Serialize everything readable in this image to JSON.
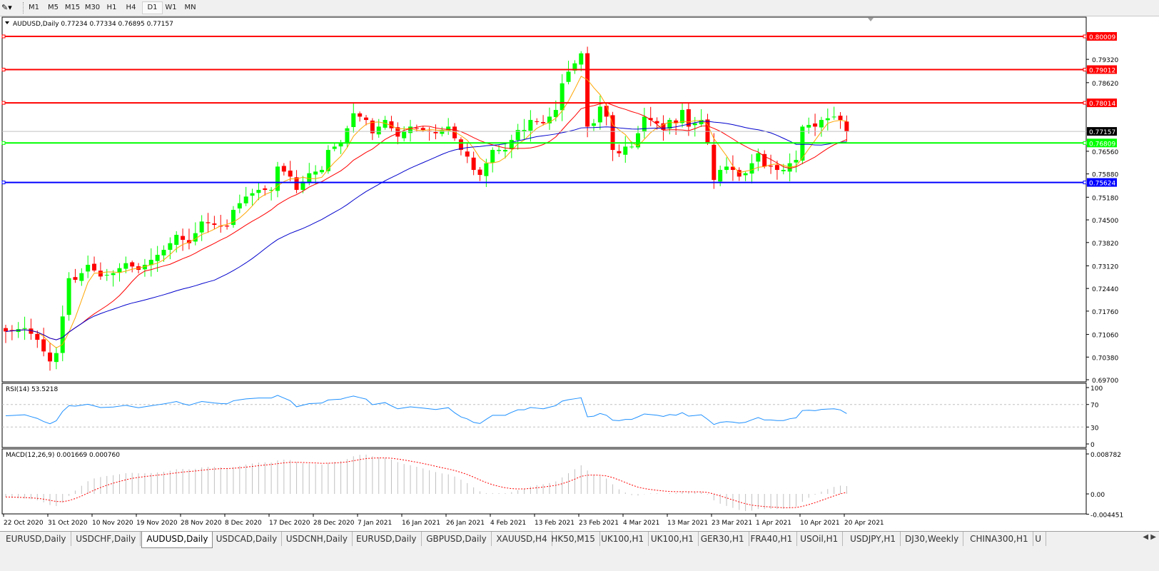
{
  "toolbar": {
    "tool_icon": "cursor-crosshair-icon",
    "timeframes": [
      "M1",
      "M5",
      "M15",
      "M30",
      "H1",
      "H4",
      "D1",
      "W1",
      "MN"
    ],
    "active_timeframe": "D1"
  },
  "chart": {
    "header": "AUDUSD,Daily  0.77234 0.77334 0.76895 0.77157",
    "symbol": "AUDUSD",
    "period": "Daily",
    "ohlc": {
      "open": 0.77234,
      "high": 0.77334,
      "low": 0.76895,
      "close": 0.77157
    },
    "current_price": "0.77157",
    "price_ticks": [
      "0.79320",
      "0.78620",
      "0.76560",
      "0.75880",
      "0.75180",
      "0.74500",
      "0.73820",
      "0.73120",
      "0.72440",
      "0.71760",
      "0.71060",
      "0.70380",
      "0.69700"
    ],
    "horizontal_lines": [
      {
        "price": "0.80009",
        "color": "#ff0000"
      },
      {
        "price": "0.79012",
        "color": "#ff0000"
      },
      {
        "price": "0.78014",
        "color": "#ff0000"
      },
      {
        "price": "0.76809",
        "color": "#00ff00"
      },
      {
        "price": "0.75624",
        "color": "#0000ff"
      }
    ],
    "colors": {
      "bull": "#00ff00",
      "bear": "#ff0000",
      "ma_fast": "#ffa500",
      "ma_mid": "#ff0000",
      "ma_slow": "#0000cd",
      "rsi": "#1e90ff",
      "macd_signal": "#ff0000",
      "macd_hist": "#c0c0c0"
    },
    "date_labels": [
      "22 Oct 2020",
      "31 Oct 2020",
      "10 Nov 2020",
      "19 Nov 2020",
      "28 Nov 2020",
      "8 Dec 2020",
      "17 Dec 2020",
      "28 Dec 2020",
      "7 Jan 2021",
      "16 Jan 2021",
      "26 Jan 2021",
      "4 Feb 2021",
      "13 Feb 2021",
      "23 Feb 2021",
      "4 Mar 2021",
      "13 Mar 2021",
      "23 Mar 2021",
      "1 Apr 2021",
      "10 Apr 2021",
      "20 Apr 2021"
    ]
  },
  "rsi": {
    "label": "RSI(14) 53.5218",
    "ticks": [
      "100",
      "70",
      "30",
      "0"
    ],
    "levels": [
      70,
      30
    ]
  },
  "macd": {
    "label": "MACD(12,26,9) 0.001669 0.000760",
    "ticks": [
      "0.008782",
      "0.00",
      "-0.004451"
    ]
  },
  "chart_data": {
    "type": "candlestick",
    "title": "AUDUSD,Daily",
    "ylim": [
      0.697,
      0.8045
    ],
    "closes": [
      0.7115,
      0.7118,
      0.7122,
      0.7125,
      0.7108,
      0.709,
      0.7055,
      0.7025,
      0.705,
      0.716,
      0.7275,
      0.727,
      0.729,
      0.7315,
      0.7298,
      0.728,
      0.7285,
      0.729,
      0.7305,
      0.732,
      0.731,
      0.73,
      0.7315,
      0.733,
      0.7345,
      0.736,
      0.738,
      0.7405,
      0.739,
      0.738,
      0.741,
      0.7445,
      0.744,
      0.7435,
      0.7432,
      0.743,
      0.748,
      0.75,
      0.752,
      0.753,
      0.754,
      0.754,
      0.754,
      0.761,
      0.7595,
      0.758,
      0.754,
      0.7565,
      0.759,
      0.7595,
      0.76,
      0.766,
      0.767,
      0.768,
      0.7725,
      0.777,
      0.776,
      0.775,
      0.771,
      0.773,
      0.775,
      0.7725,
      0.77,
      0.7715,
      0.773,
      0.7725,
      0.772,
      0.7715,
      0.771,
      0.772,
      0.773,
      0.7695,
      0.766,
      0.764,
      0.76,
      0.7585,
      0.762,
      0.766,
      0.766,
      0.766,
      0.769,
      0.772,
      0.772,
      0.775,
      0.7745,
      0.774,
      0.776,
      0.778,
      0.786,
      0.7895,
      0.792,
      0.795,
      0.773,
      0.774,
      0.779,
      0.776,
      0.766,
      0.765,
      0.767,
      0.767,
      0.771,
      0.776,
      0.775,
      0.774,
      0.772,
      0.775,
      0.774,
      0.778,
      0.773,
      0.774,
      0.775,
      0.768,
      0.757,
      0.76,
      0.761,
      0.76,
      0.758,
      0.759,
      0.762,
      0.765,
      0.761,
      0.761,
      0.76,
      0.76,
      0.762,
      0.763,
      0.773,
      0.7735,
      0.773,
      0.775,
      0.7755,
      0.776,
      0.775,
      0.77157
    ]
  },
  "tabs": [
    {
      "label": "EURUSD,Daily"
    },
    {
      "label": "USDCHF,Daily"
    },
    {
      "label": "AUDUSD,Daily",
      "active": true
    },
    {
      "label": "USDCAD,Daily"
    },
    {
      "label": "USDCNH,Daily"
    },
    {
      "label": "EURUSD,Daily"
    },
    {
      "label": "GBPUSD,Daily"
    },
    {
      "label": "XAUUSD,H4"
    },
    {
      "label": "HK50,M15"
    },
    {
      "label": "UK100,H1"
    },
    {
      "label": "UK100,H1"
    },
    {
      "label": "GER30,H1"
    },
    {
      "label": "FRA40,H1"
    },
    {
      "label": "USOil,H1"
    },
    {
      "label": "USDJPY,H1"
    },
    {
      "label": "DJ30,Weekly"
    },
    {
      "label": "CHINA300,H1"
    },
    {
      "label": "U"
    }
  ],
  "tab_scroll": {
    "left": "◀",
    "right": "▶"
  }
}
